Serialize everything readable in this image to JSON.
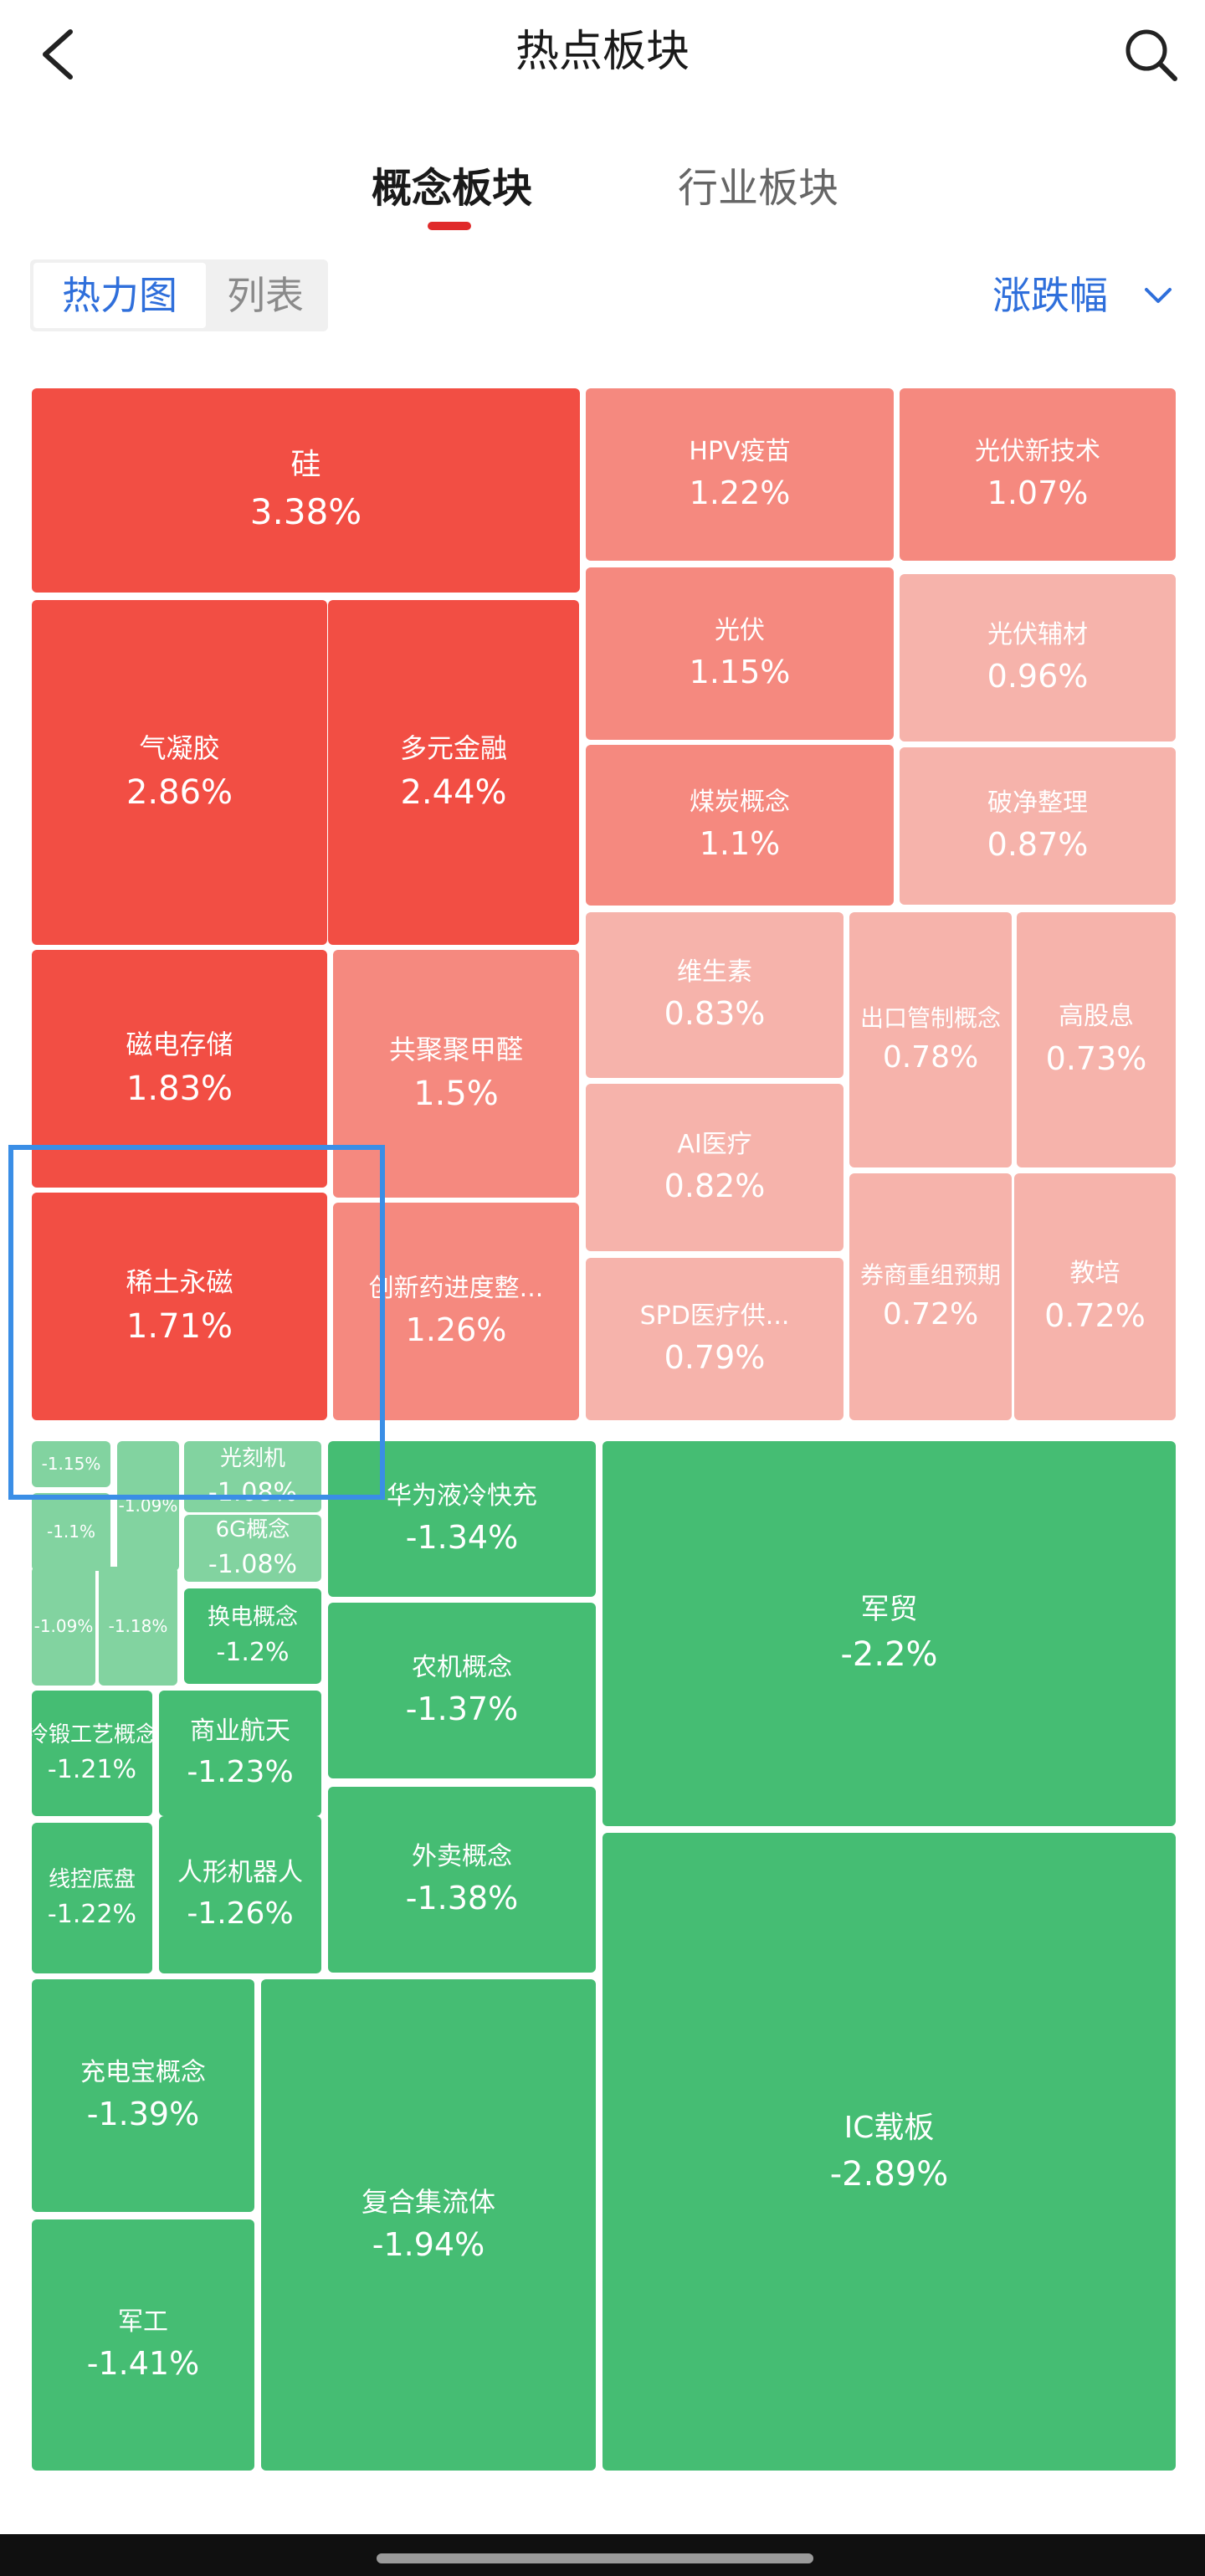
{
  "header": {
    "title": "热点板块",
    "back_icon": "chevron-left-icon",
    "search_icon": "search-icon"
  },
  "tabs": [
    {
      "label": "概念板块",
      "active": true
    },
    {
      "label": "行业板块",
      "active": false
    }
  ],
  "view_toggle": {
    "heatmap_label": "热力图",
    "list_label": "列表",
    "active": "热力图"
  },
  "sort": {
    "label": "涨跌幅",
    "icon": "chevron-down-icon"
  },
  "colors": {
    "strong_red": "#f24e44",
    "mid_red": "#f5897f",
    "light_red": "#f6b3ab",
    "mid_green": "#45bd73",
    "light_green": "#82d3a0",
    "accent_blue": "#2f6fdb",
    "tab_red": "#e02a2a"
  },
  "tiles": [
    {
      "name": "硅",
      "change": "3.38%"
    },
    {
      "name": "HPV疫苗",
      "change": "1.22%"
    },
    {
      "name": "光伏新技术",
      "change": "1.07%"
    },
    {
      "name": "气凝胶",
      "change": "2.86%"
    },
    {
      "name": "多元金融",
      "change": "2.44%"
    },
    {
      "name": "光伏",
      "change": "1.15%"
    },
    {
      "name": "光伏辅材",
      "change": "0.96%"
    },
    {
      "name": "煤炭概念",
      "change": "1.1%"
    },
    {
      "name": "破净整理",
      "change": "0.87%"
    },
    {
      "name": "磁电存储",
      "change": "1.83%"
    },
    {
      "name": "共聚聚甲醛",
      "change": "1.5%"
    },
    {
      "name": "维生素",
      "change": "0.83%"
    },
    {
      "name": "出口管制概念",
      "change": "0.78%"
    },
    {
      "name": "高股息",
      "change": "0.73%"
    },
    {
      "name": "AI医疗",
      "change": "0.82%"
    },
    {
      "name": "稀土永磁",
      "change": "1.71%"
    },
    {
      "name": "创新药进度整...",
      "change": "1.26%"
    },
    {
      "name": "SPD医疗供...",
      "change": "0.79%"
    },
    {
      "name": "券商重组预期",
      "change": "0.72%"
    },
    {
      "name": "教培",
      "change": "0.72%"
    },
    {
      "name": "",
      "change": "-1.15%"
    },
    {
      "name": "",
      "change": "-1.09%"
    },
    {
      "name": "光刻机",
      "change": "-1.08%"
    },
    {
      "name": "",
      "change": "-1.1%"
    },
    {
      "name": "6G概念",
      "change": "-1.08%"
    },
    {
      "name": "",
      "change": "-1.09%"
    },
    {
      "name": "",
      "change": "-1.18%"
    },
    {
      "name": "换电概念",
      "change": "-1.2%"
    },
    {
      "name": "华为液冷快充",
      "change": "-1.34%"
    },
    {
      "name": "军贸",
      "change": "-2.2%"
    },
    {
      "name": "冷锻工艺概念",
      "change": "-1.21%"
    },
    {
      "name": "商业航天",
      "change": "-1.23%"
    },
    {
      "name": "农机概念",
      "change": "-1.37%"
    },
    {
      "name": "线控底盘",
      "change": "-1.22%"
    },
    {
      "name": "人形机器人",
      "change": "-1.26%"
    },
    {
      "name": "外卖概念",
      "change": "-1.38%"
    },
    {
      "name": "IC载板",
      "change": "-2.89%"
    },
    {
      "name": "充电宝概念",
      "change": "-1.39%"
    },
    {
      "name": "复合集流体",
      "change": "-1.94%"
    },
    {
      "name": "军工",
      "change": "-1.41%"
    }
  ]
}
